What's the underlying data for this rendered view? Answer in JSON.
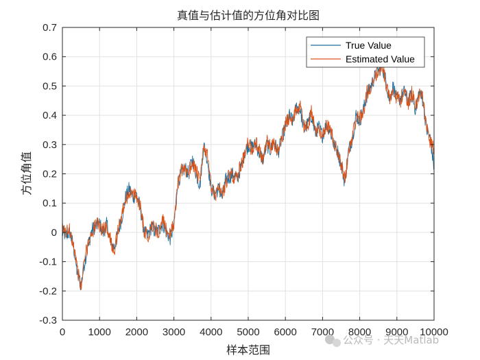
{
  "chart_data": {
    "type": "line",
    "title": "真值与估计值的方位角对比图",
    "xlabel": "样本范围",
    "ylabel": "方位角值",
    "xlim": [
      0,
      10000
    ],
    "ylim": [
      -0.3,
      0.7
    ],
    "xticks": [
      0,
      1000,
      2000,
      3000,
      4000,
      5000,
      6000,
      7000,
      8000,
      9000,
      10000
    ],
    "yticks": [
      -0.3,
      -0.2,
      -0.1,
      0,
      0.1,
      0.2,
      0.3,
      0.4,
      0.5,
      0.6,
      0.7
    ],
    "xtick_labels": [
      "0",
      "1000",
      "2000",
      "3000",
      "4000",
      "5000",
      "6000",
      "7000",
      "8000",
      "9000",
      "10000"
    ],
    "ytick_labels": [
      "-0.3",
      "-0.2",
      "-0.1",
      "0",
      "0.1",
      "0.2",
      "0.3",
      "0.4",
      "0.5",
      "0.6",
      "0.7"
    ],
    "grid": true,
    "legend_position": "top-right",
    "series_x": [
      0,
      100,
      200,
      300,
      400,
      500,
      600,
      700,
      800,
      900,
      1000,
      1100,
      1200,
      1300,
      1400,
      1500,
      1600,
      1700,
      1800,
      1900,
      2000,
      2100,
      2200,
      2300,
      2400,
      2500,
      2600,
      2700,
      2800,
      2900,
      3000,
      3100,
      3200,
      3300,
      3400,
      3500,
      3600,
      3700,
      3800,
      3900,
      4000,
      4100,
      4200,
      4300,
      4400,
      4500,
      4600,
      4700,
      4800,
      4900,
      5000,
      5100,
      5200,
      5300,
      5400,
      5500,
      5600,
      5700,
      5800,
      5900,
      6000,
      6100,
      6200,
      6300,
      6400,
      6500,
      6600,
      6700,
      6800,
      6900,
      7000,
      7100,
      7200,
      7300,
      7400,
      7500,
      7600,
      7700,
      7800,
      7900,
      8000,
      8100,
      8200,
      8300,
      8400,
      8500,
      8600,
      8700,
      8800,
      8900,
      9000,
      9100,
      9200,
      9300,
      9400,
      9500,
      9600,
      9700,
      9800,
      9900,
      10000
    ],
    "series": [
      {
        "name": "True Value",
        "color": "#1f6e9c",
        "values": [
          0.0,
          -0.01,
          0.0,
          -0.05,
          -0.14,
          -0.18,
          -0.1,
          -0.04,
          0.01,
          0.02,
          0.03,
          0.0,
          0.03,
          -0.04,
          -0.05,
          0.0,
          0.05,
          0.12,
          0.15,
          0.12,
          0.13,
          0.08,
          0.0,
          -0.01,
          0.02,
          0.0,
          0.01,
          0.03,
          0.0,
          -0.02,
          0.02,
          0.17,
          0.2,
          0.22,
          0.2,
          0.25,
          0.2,
          0.16,
          0.3,
          0.25,
          0.15,
          0.13,
          0.15,
          0.12,
          0.18,
          0.19,
          0.2,
          0.18,
          0.22,
          0.27,
          0.3,
          0.29,
          0.3,
          0.27,
          0.25,
          0.3,
          0.28,
          0.31,
          0.27,
          0.32,
          0.36,
          0.4,
          0.38,
          0.43,
          0.42,
          0.35,
          0.37,
          0.4,
          0.34,
          0.36,
          0.33,
          0.37,
          0.35,
          0.3,
          0.28,
          0.23,
          0.17,
          0.28,
          0.32,
          0.4,
          0.38,
          0.42,
          0.47,
          0.5,
          0.53,
          0.55,
          0.57,
          0.52,
          0.45,
          0.5,
          0.45,
          0.46,
          0.48,
          0.45,
          0.47,
          0.42,
          0.48,
          0.45,
          0.35,
          0.32,
          0.22
        ]
      },
      {
        "name": "Estimated Value",
        "color": "#d95319",
        "values": [
          0.01,
          0.0,
          0.01,
          -0.04,
          -0.12,
          -0.19,
          -0.09,
          -0.03,
          0.0,
          0.03,
          0.02,
          0.01,
          0.02,
          -0.03,
          -0.06,
          0.01,
          0.06,
          0.11,
          0.14,
          0.13,
          0.12,
          0.09,
          0.01,
          -0.02,
          0.03,
          0.01,
          0.0,
          0.04,
          0.01,
          -0.01,
          0.03,
          0.16,
          0.21,
          0.21,
          0.21,
          0.24,
          0.21,
          0.17,
          0.29,
          0.26,
          0.16,
          0.12,
          0.16,
          0.13,
          0.17,
          0.2,
          0.19,
          0.19,
          0.23,
          0.26,
          0.31,
          0.28,
          0.31,
          0.28,
          0.24,
          0.31,
          0.29,
          0.3,
          0.28,
          0.31,
          0.37,
          0.39,
          0.39,
          0.42,
          0.43,
          0.36,
          0.36,
          0.41,
          0.35,
          0.35,
          0.34,
          0.36,
          0.36,
          0.31,
          0.27,
          0.24,
          0.18,
          0.27,
          0.33,
          0.39,
          0.39,
          0.41,
          0.48,
          0.49,
          0.54,
          0.54,
          0.58,
          0.51,
          0.46,
          0.49,
          0.46,
          0.45,
          0.49,
          0.44,
          0.48,
          0.43,
          0.47,
          0.46,
          0.36,
          0.31,
          0.28
        ]
      }
    ]
  },
  "watermark": "公众号 · 天天Matlab",
  "colors": {
    "axes_background": "#ffffff",
    "grid": "#e1e1e1",
    "axis_line": "#262626"
  }
}
